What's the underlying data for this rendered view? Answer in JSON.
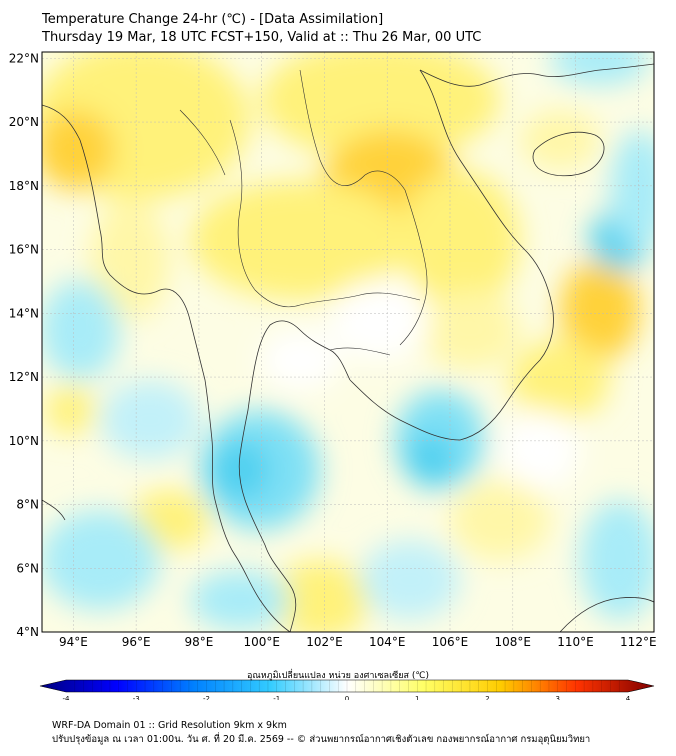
{
  "title": {
    "line1": "Temperature Change 24-hr (℃) - [Data Assimilation]",
    "line2": "Thursday 19 Mar, 18 UTC FCST+150, Valid at :: Thu 26 Mar, 00 UTC"
  },
  "map": {
    "lat_labels": [
      "22°N",
      "20°N",
      "18°N",
      "16°N",
      "14°N",
      "12°N",
      "10°N",
      "8°N",
      "6°N",
      "4°N"
    ],
    "lon_labels": [
      "94°E",
      "96°E",
      "98°E",
      "100°E",
      "102°E",
      "104°E",
      "106°E",
      "108°E",
      "110°E",
      "112°E"
    ],
    "lat_range": [
      4,
      22.2
    ],
    "lon_range": [
      93,
      112.5
    ],
    "grid": true
  },
  "colorbar": {
    "title": "อุณหภูมิเปลี่ยนแปลง หน่วย องศาเซลเซียส (℃)",
    "ticks": [
      "-4",
      "-3",
      "-2",
      "-1",
      "0",
      "1",
      "2",
      "3",
      "4"
    ],
    "range": [
      -4,
      4
    ],
    "colors": {
      "neg4": "#00007f",
      "neg3": "#0000ff",
      "neg2": "#0080ff",
      "neg1": "#33ccff",
      "zero": "#ffffff",
      "pos1": "#ffff66",
      "pos2": "#ffcc00",
      "pos3": "#ff3300",
      "pos4": "#7f0000"
    }
  },
  "footer": {
    "line1": "WRF-DA Domain 01 :: Grid Resolution 9km x 9km",
    "line2": "ปรับปรุงข้อมูล ณ เวลา 01:00น. วัน ศ. ที่ 20 มี.ค. 2569 -- © ส่วนพยากรณ์อากาศเชิงตัวเลข กองพยากรณ์อากาศ กรมอุตุนิยมวิทยา"
  }
}
